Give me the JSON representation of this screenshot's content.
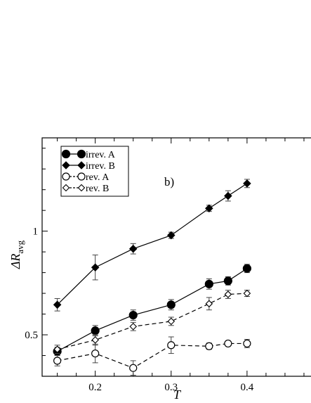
{
  "chart_data": {
    "type": "line",
    "panel_label": "b)",
    "xlabel": "T",
    "ylabel": "ΔR",
    "ylabel_sub": "avg",
    "xlim": [
      0.13,
      0.5
    ],
    "ylim": [
      0.3,
      1.45
    ],
    "x_ticks": [
      0.2,
      0.3,
      0.4
    ],
    "x_tick_labels": [
      "0.2",
      "0.3",
      "0.4"
    ],
    "y_ticks": [
      0.5,
      1.0
    ],
    "y_tick_labels": [
      "0.5",
      "1"
    ],
    "legend_position": "top-left",
    "grid": false,
    "series": [
      {
        "name": "irrev. A",
        "marker": "filled-circle",
        "line": "solid",
        "x": [
          0.15,
          0.2,
          0.25,
          0.3,
          0.35,
          0.375,
          0.4
        ],
        "y": [
          0.42,
          0.52,
          0.595,
          0.645,
          0.745,
          0.76,
          0.82
        ],
        "err": [
          0.02,
          0.025,
          0.025,
          0.025,
          0.025,
          0.02,
          0.02
        ]
      },
      {
        "name": "irrev. B",
        "marker": "filled-diamond",
        "line": "solid",
        "x": [
          0.15,
          0.2,
          0.25,
          0.3,
          0.35,
          0.375,
          0.4
        ],
        "y": [
          0.645,
          0.825,
          0.915,
          0.98,
          1.11,
          1.17,
          1.23
        ],
        "err": [
          0.03,
          0.06,
          0.025,
          0.015,
          0.015,
          0.025,
          0.02
        ]
      },
      {
        "name": "rev. A",
        "marker": "open-circle",
        "line": "dashed",
        "x": [
          0.15,
          0.2,
          0.25,
          0.3,
          0.35,
          0.375,
          0.4
        ],
        "y": [
          0.375,
          0.41,
          0.34,
          0.45,
          0.445,
          0.458,
          0.458
        ],
        "err": [
          0.025,
          0.045,
          0.035,
          0.04,
          0.015,
          0.01,
          0.02
        ]
      },
      {
        "name": "rev. B",
        "marker": "open-diamond",
        "line": "dashed",
        "x": [
          0.15,
          0.2,
          0.25,
          0.3,
          0.35,
          0.375,
          0.4
        ],
        "y": [
          0.43,
          0.475,
          0.54,
          0.565,
          0.65,
          0.695,
          0.7
        ],
        "err": [
          0.02,
          0.025,
          0.02,
          0.02,
          0.03,
          0.02,
          0.015
        ]
      }
    ]
  }
}
